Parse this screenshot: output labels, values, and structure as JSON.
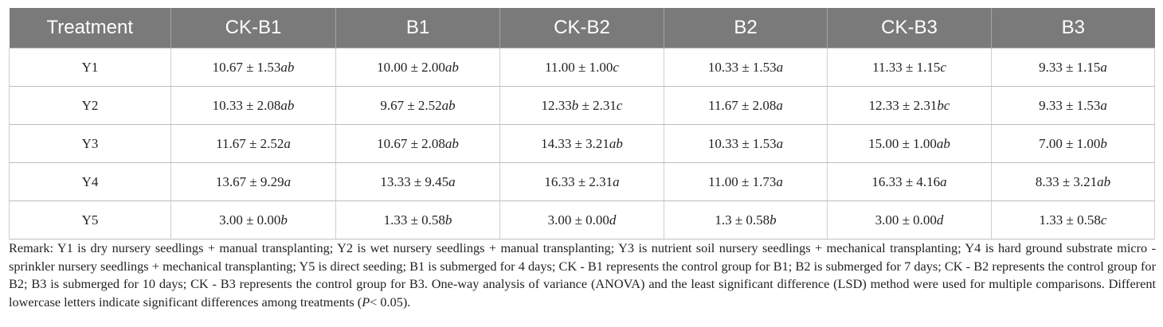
{
  "table": {
    "headers": [
      "Treatment",
      "CK-B1",
      "B1",
      "CK-B2",
      "B2",
      "CK-B3",
      "B3"
    ],
    "rows": [
      {
        "treatment": "Y1",
        "cells": [
          {
            "value": "10.67 ± 1.53",
            "sig": "ab"
          },
          {
            "value": "10.00 ± 2.00",
            "sig": "ab"
          },
          {
            "value": "11.00 ± 1.00",
            "sig": "c"
          },
          {
            "value": "10.33 ± 1.53",
            "sig": "a"
          },
          {
            "value": "11.33 ± 1.15",
            "sig": "c"
          },
          {
            "value": "9.33 ± 1.15",
            "sig": "a"
          }
        ]
      },
      {
        "treatment": "Y2",
        "cells": [
          {
            "value": "10.33 ± 2.08",
            "sig": "ab"
          },
          {
            "value": "9.67 ± 2.52",
            "sig": "ab"
          },
          {
            "value": "12.33",
            "sig": "b",
            "tail": " ± 2.31",
            "sig2": "c"
          },
          {
            "value": "11.67 ± 2.08",
            "sig": "a"
          },
          {
            "value": "12.33 ± 2.31",
            "sig": "bc"
          },
          {
            "value": "9.33 ± 1.53",
            "sig": "a"
          }
        ]
      },
      {
        "treatment": "Y3",
        "cells": [
          {
            "value": "11.67 ± 2.52",
            "sig": "a"
          },
          {
            "value": "10.67 ± 2.08",
            "sig": "ab"
          },
          {
            "value": "14.33 ± 3.21",
            "sig": "ab"
          },
          {
            "value": "10.33 ± 1.53",
            "sig": "a"
          },
          {
            "value": "15.00 ± 1.00",
            "sig": "ab"
          },
          {
            "value": "7.00 ± 1.00",
            "sig": "b"
          }
        ]
      },
      {
        "treatment": "Y4",
        "cells": [
          {
            "value": "13.67 ± 9.29",
            "sig": "a"
          },
          {
            "value": "13.33 ± 9.45",
            "sig": "a"
          },
          {
            "value": "16.33 ± 2.31",
            "sig": "a"
          },
          {
            "value": "11.00 ± 1.73",
            "sig": "a"
          },
          {
            "value": "16.33 ± 4.16",
            "sig": "a"
          },
          {
            "value": "8.33 ± 3.21",
            "sig": "ab"
          }
        ]
      },
      {
        "treatment": "Y5",
        "cells": [
          {
            "value": "3.00 ± 0.00",
            "sig": "b"
          },
          {
            "value": "1.33 ± 0.58",
            "sig": "b"
          },
          {
            "value": "3.00 ± 0.00",
            "sig": "d"
          },
          {
            "value": "1.3 ± 0.58",
            "sig": "b"
          },
          {
            "value": "3.00 ± 0.00",
            "sig": "d"
          },
          {
            "value": "1.33 ± 0.58",
            "sig": "c"
          }
        ]
      }
    ]
  },
  "remark": {
    "text_before": "Remark: Y1 is dry nursery seedlings + manual transplanting; Y2 is wet nursery seedlings + manual transplanting; Y3 is nutrient soil nursery seedlings + mechanical transplanting; Y4 is hard ground substrate micro - sprinkler nursery seedlings + mechanical transplanting; Y5 is direct seeding; B1 is submerged for 4 days; CK - B1 represents the control group for B1; B2 is submerged for 7 days; CK - B2 represents the control group for B2; B3 is submerged for 10 days; CK - B3 represents the control group for B3. One-way analysis of variance (ANOVA) and the least significant difference (LSD) method were used for multiple comparisons. Different lowercase letters indicate significant differences among treatments (",
    "p_symbol": "P",
    "text_after": "< 0.05)."
  },
  "colors": {
    "header_bg": "#7a7a7a",
    "header_text": "#ffffff",
    "grid_line": "#bdbdbd",
    "body_text": "#222222"
  }
}
